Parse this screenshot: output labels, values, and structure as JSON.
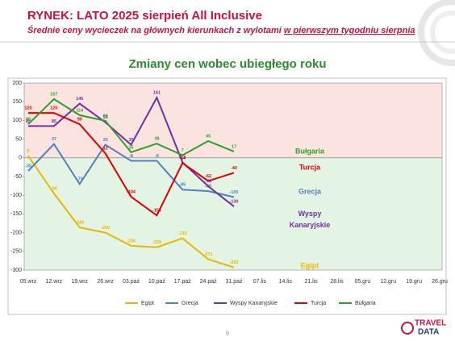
{
  "header": {
    "title": "RYNEK: LATO 2025 sierpień All Inclusive",
    "subtitle": "Średnie ceny wycieczek na głównych kierunkach z wylotami",
    "subtitle_underlined": "w pierwszym tygodniu sierpnia"
  },
  "chart_data": {
    "type": "line",
    "title": "Zmiany cen wobec ubiegłego roku",
    "categories": [
      "05.wrz",
      "12.wrz",
      "19.wrz",
      "26.wrz",
      "03.paź",
      "10.paź",
      "17.paź",
      "24.paź",
      "31.paź",
      "07.lis",
      "14.lis",
      "21.lis",
      "28.lis",
      "05.gru",
      "12.gru",
      "19.gru",
      "26.gru"
    ],
    "series": [
      {
        "name": "Egipt",
        "color": "#e6b800",
        "values": [
          5,
          -95,
          -186,
          -200,
          -235,
          -239,
          -215,
          -271,
          -293,
          null,
          null,
          null,
          null,
          null,
          null,
          null,
          null
        ]
      },
      {
        "name": "Grecja",
        "color": "#4f81bd",
        "values": [
          -35,
          37,
          -70,
          35,
          -8,
          -8,
          -85,
          -89,
          -105,
          null,
          null,
          null,
          null,
          null,
          null,
          null,
          null
        ]
      },
      {
        "name": "Wyspy Kanaryjskie",
        "color": "#7030a0",
        "values": [
          85,
          85,
          145,
          95,
          35,
          161,
          -12,
          -76,
          -130,
          null,
          null,
          null,
          null,
          null,
          null,
          null,
          null
        ]
      },
      {
        "name": "Turcja",
        "color": "#e00000",
        "values": [
          120,
          120,
          90,
          12,
          -104,
          -154,
          -14,
          -62,
          -40,
          null,
          null,
          null,
          null,
          null,
          null,
          null,
          null
        ]
      },
      {
        "name": "Bułgaria",
        "color": "#2ca02c",
        "values": [
          90,
          157,
          114,
          99,
          15,
          38,
          7,
          45,
          17,
          null,
          null,
          null,
          null,
          null,
          null,
          null,
          null
        ]
      }
    ],
    "ylim": [
      -300,
      200
    ],
    "yticks": [
      200,
      150,
      100,
      50,
      0,
      -50,
      -100,
      -150,
      -200,
      -250,
      -300
    ],
    "annotations": [
      "Bułgaria",
      "Turcja",
      "Grecja",
      "Wyspy Kanaryjskie",
      "Egipt"
    ],
    "grid": false,
    "legend": "bottom"
  },
  "footer": {
    "page": "9",
    "logo_top": "TRAVEL",
    "logo_bottom": "DATA"
  }
}
